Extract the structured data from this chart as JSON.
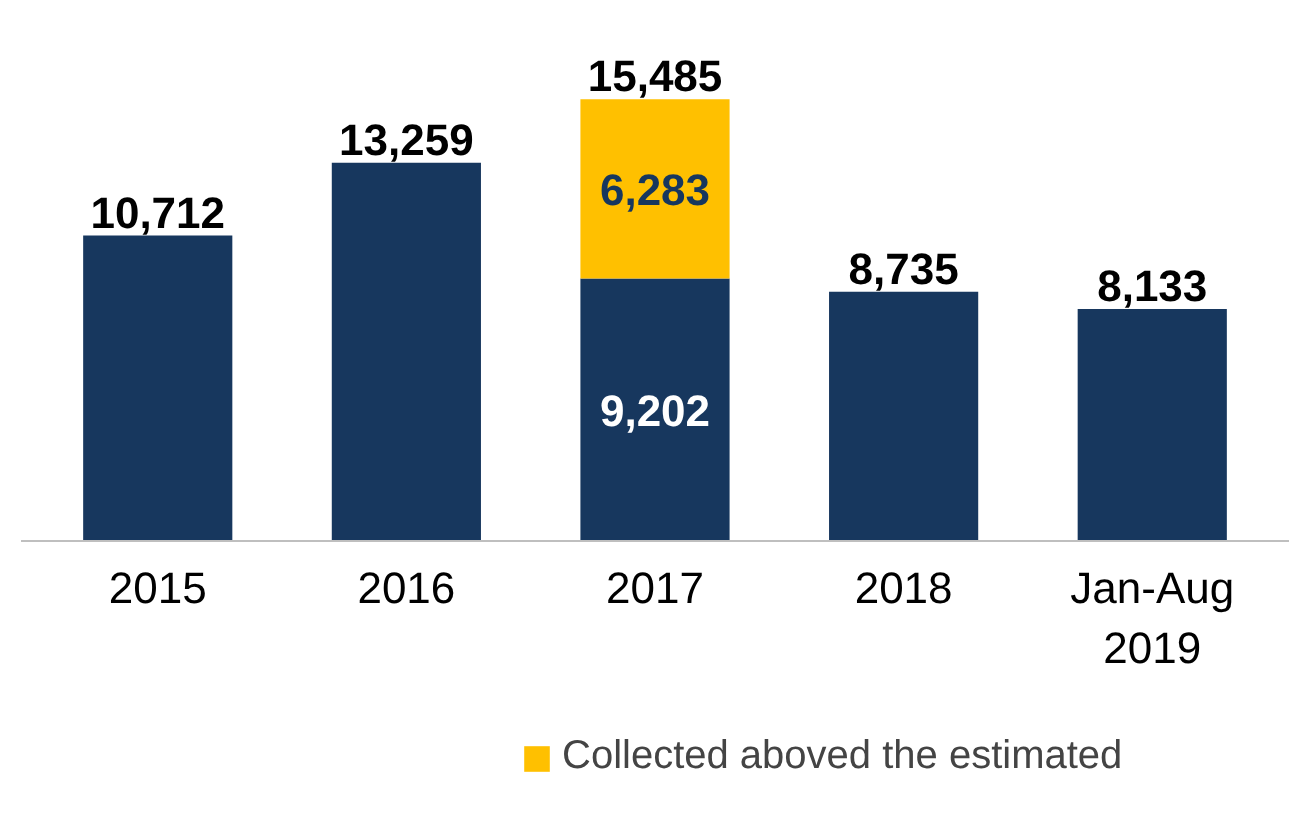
{
  "chart_data": {
    "type": "bar",
    "stacked": true,
    "categories": [
      "2015",
      "2016",
      "2017",
      "2018",
      "Jan-Aug\n2019"
    ],
    "series": [
      {
        "color": "#17375e",
        "values": [
          10712,
          13259,
          9202,
          8735,
          8133
        ],
        "value_labels": [
          "10,712",
          "13,259",
          "9,202",
          "8,735",
          "8,133"
        ]
      },
      {
        "name": "Collected aboved the estimated",
        "color": "#ffc000",
        "values": [
          null,
          null,
          6283,
          null,
          null
        ],
        "value_labels": [
          null,
          null,
          "6,283",
          null,
          null
        ]
      }
    ],
    "totals": [
      null,
      null,
      "15,485",
      null,
      null
    ],
    "legend": "bottom",
    "grid": false
  }
}
